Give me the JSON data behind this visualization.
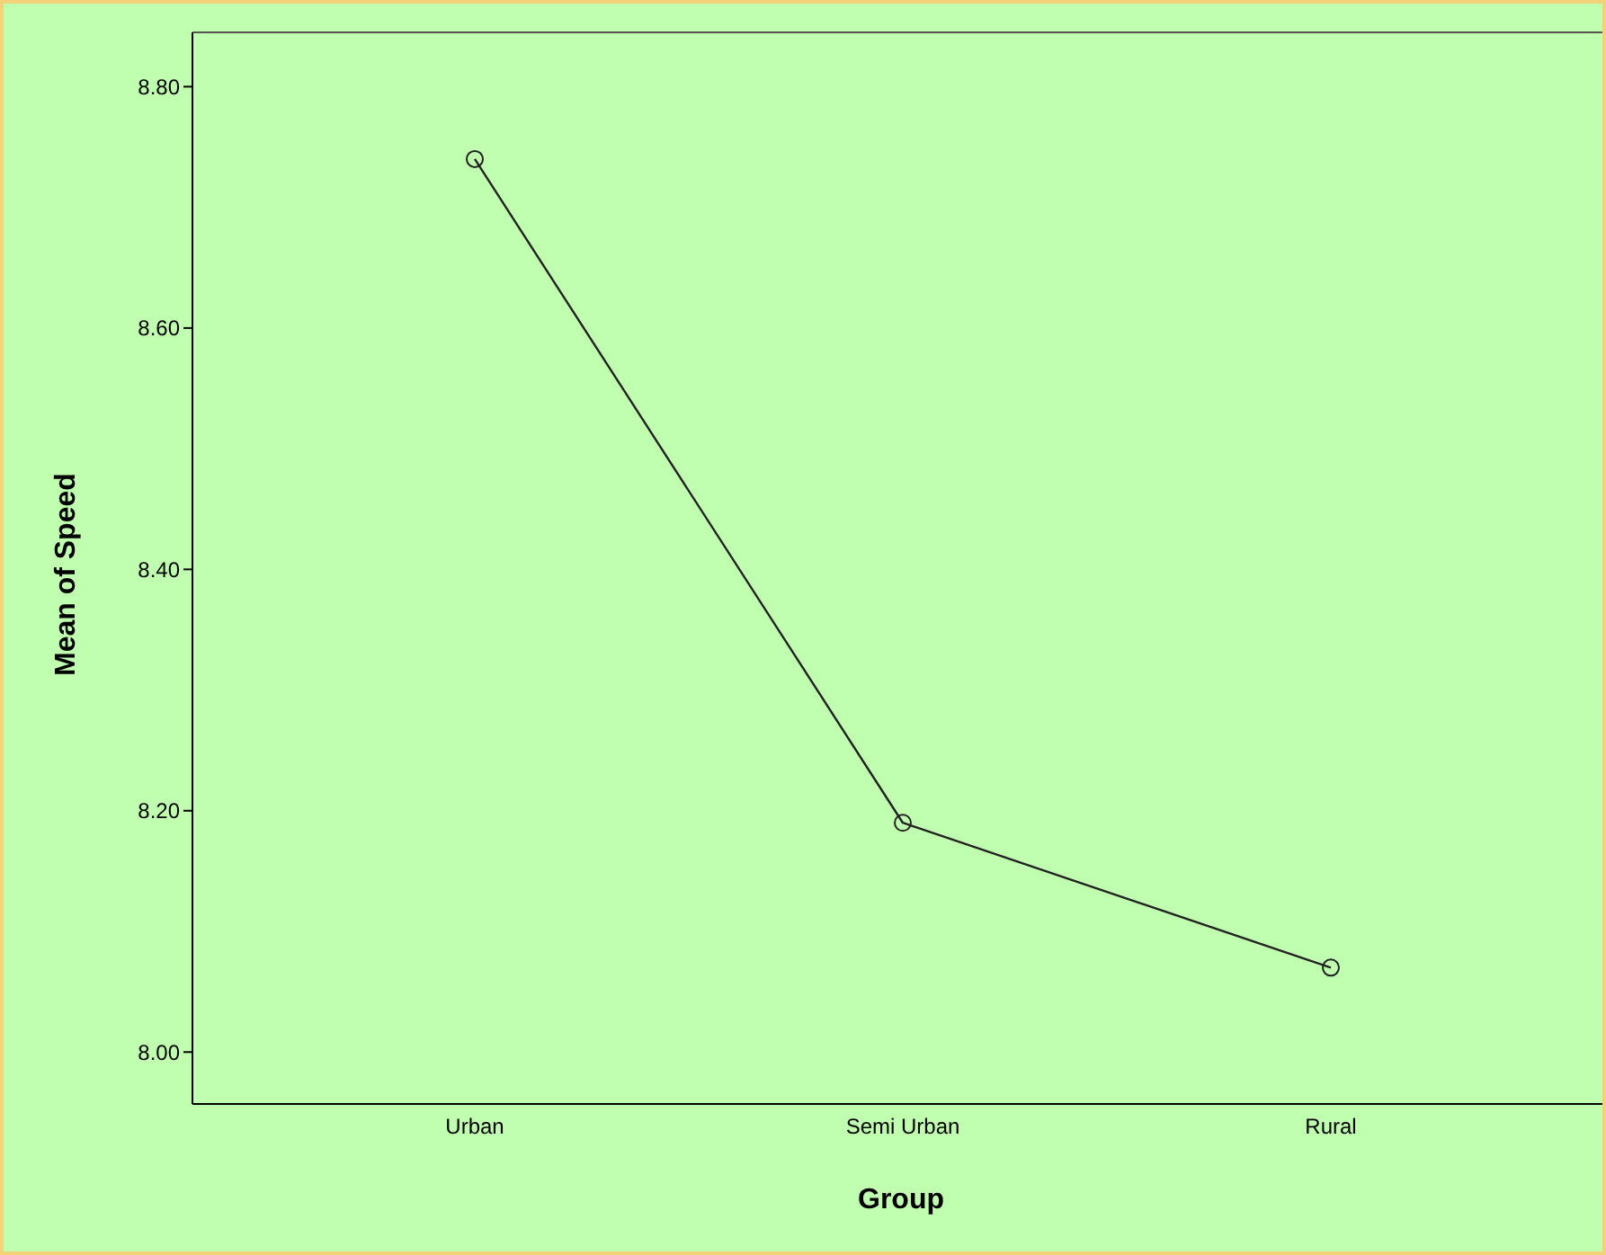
{
  "chart_data": {
    "type": "line",
    "xlabel": "Group",
    "ylabel": "Mean of Speed",
    "categories": [
      "Urban",
      "Semi Urban",
      "Rural"
    ],
    "series": [
      {
        "color": "#222222",
        "values": [
          8.74,
          8.19,
          8.07
        ]
      }
    ],
    "ylim": [
      7.957,
      8.845
    ],
    "yticks": [
      {
        "value": 8.0,
        "label": "8.00"
      },
      {
        "value": 8.2,
        "label": "8.20"
      },
      {
        "value": 8.4,
        "label": "8.40"
      },
      {
        "value": 8.6,
        "label": "8.60"
      },
      {
        "value": 8.8,
        "label": "8.80"
      }
    ],
    "grid": false,
    "legend": false,
    "marker": "circle",
    "line_style": "solid"
  }
}
